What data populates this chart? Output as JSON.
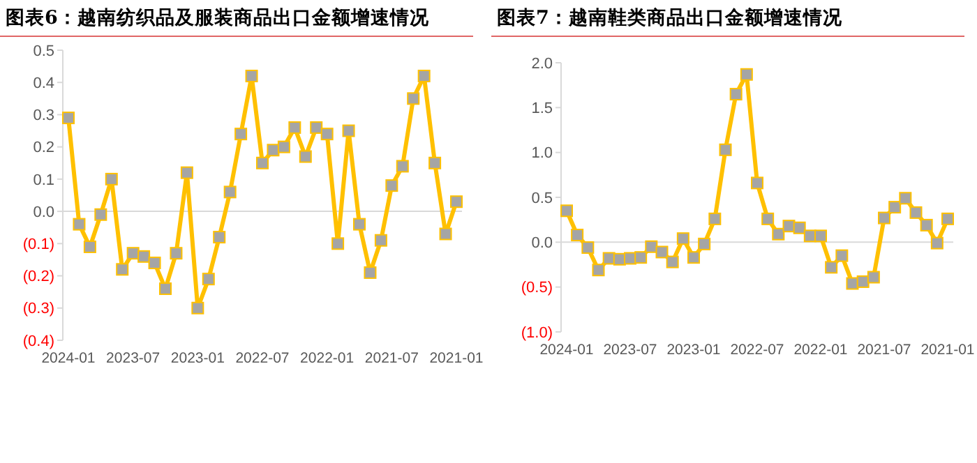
{
  "chart_data": [
    {
      "type": "line",
      "title": "图表6：越南纺织品及服装商品出口金额增速情况",
      "categories": [
        "2024-01",
        null,
        null,
        null,
        null,
        null,
        "2023-07",
        null,
        null,
        null,
        null,
        null,
        "2023-01",
        null,
        null,
        null,
        null,
        null,
        "2022-07",
        null,
        null,
        null,
        null,
        null,
        "2022-01",
        null,
        null,
        null,
        null,
        null,
        "2021-07",
        null,
        null,
        null,
        null,
        null,
        "2021-01"
      ],
      "series": [
        {
          "color": "#ffc000",
          "values": [
            0.29,
            -0.04,
            -0.11,
            -0.01,
            0.1,
            -0.18,
            -0.13,
            -0.14,
            -0.16,
            -0.24,
            -0.13,
            0.12,
            -0.3,
            -0.21,
            -0.08,
            0.06,
            0.24,
            0.42,
            0.15,
            0.19,
            0.2,
            0.26,
            0.17,
            0.26,
            0.24,
            -0.1,
            0.25,
            -0.04,
            -0.19,
            -0.09,
            0.08,
            0.14,
            0.35,
            0.42,
            0.15,
            -0.07,
            0.03
          ]
        }
      ],
      "ylim": [
        -0.4,
        0.5
      ],
      "yticks": [
        {
          "value": -0.4,
          "label": "(0.4)"
        },
        {
          "value": -0.3,
          "label": "(0.3)"
        },
        {
          "value": -0.2,
          "label": "(0.2)"
        },
        {
          "value": -0.1,
          "label": "(0.1)"
        },
        {
          "value": 0,
          "label": "0.0"
        },
        0.1,
        0.2,
        0.3,
        0.4,
        0.5
      ],
      "marker": "square",
      "line_style": "solid"
    },
    {
      "type": "line",
      "title": "图表7：越南鞋类商品出口金额增速情况",
      "categories": [
        "2024-01",
        null,
        null,
        null,
        null,
        null,
        "2023-07",
        null,
        null,
        null,
        null,
        null,
        "2023-01",
        null,
        null,
        null,
        null,
        null,
        "2022-07",
        null,
        null,
        null,
        null,
        null,
        "2022-01",
        null,
        null,
        null,
        null,
        null,
        "2021-07",
        null,
        null,
        null,
        null,
        null,
        "2021-01"
      ],
      "series": [
        {
          "color": "#ffc000",
          "values": [
            0.35,
            0.08,
            -0.06,
            -0.31,
            -0.18,
            -0.19,
            -0.18,
            -0.17,
            -0.05,
            -0.11,
            -0.22,
            0.04,
            -0.17,
            -0.02,
            0.26,
            1.03,
            1.65,
            1.87,
            0.66,
            0.26,
            0.09,
            0.18,
            0.16,
            0.07,
            0.07,
            -0.28,
            -0.15,
            -0.46,
            -0.44,
            -0.39,
            0.27,
            0.39,
            0.49,
            0.33,
            0.19,
            -0.01,
            0.26
          ]
        }
      ],
      "ylim": [
        -1,
        2
      ],
      "yticks": [
        {
          "value": -1,
          "label": "(1.0)"
        },
        {
          "value": -0.5,
          "label": "(0.5)"
        },
        {
          "value": 0,
          "label": "0.0"
        },
        0.5,
        {
          "value": 1,
          "label": "1.0"
        },
        1.5,
        {
          "value": 2,
          "label": "2.0"
        }
      ],
      "marker": "square",
      "line_style": "solid"
    }
  ]
}
